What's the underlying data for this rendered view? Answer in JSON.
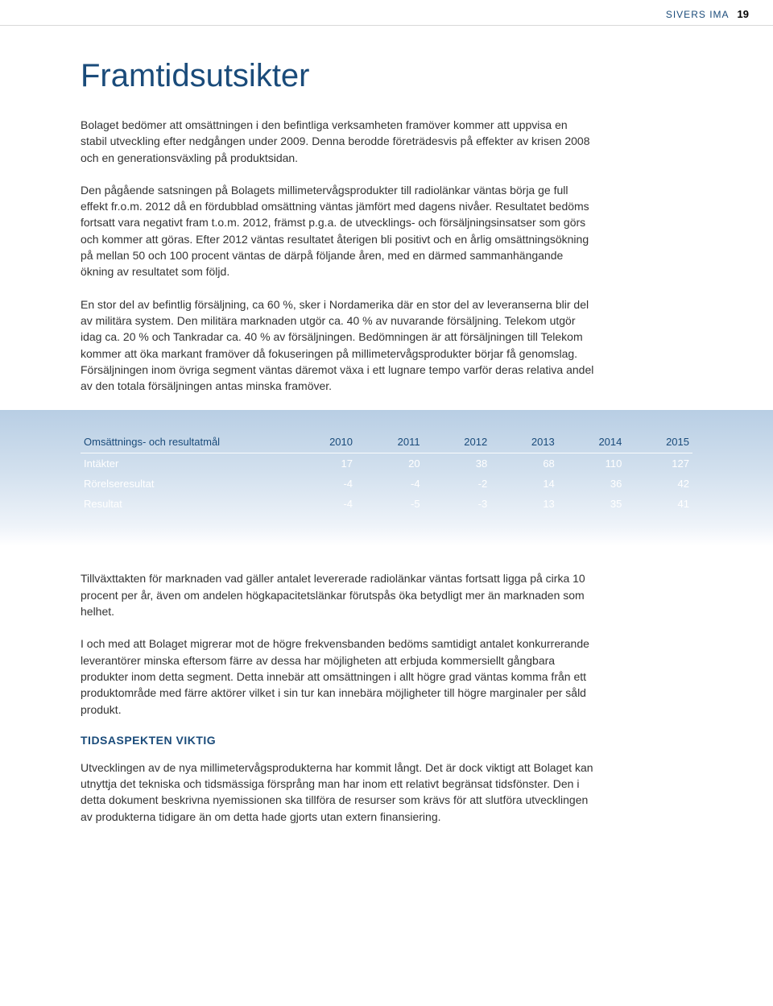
{
  "header": {
    "company": "SIVERS IMA",
    "company_color": "#1a4b7a",
    "page_number": "19",
    "page_number_color": "#000000"
  },
  "title": {
    "text": "Framtidsutsikter",
    "color": "#1a4b7a",
    "fontsize_pt": 40
  },
  "paragraphs": [
    "Bolaget bedömer att omsättningen i den befintliga verksamheten framöver kommer att uppvisa en stabil utveckling efter nedgången under 2009. Denna berodde företrädesvis på effekter av krisen 2008 och en generationsväxling på produktsidan.",
    "Den pågående satsningen på Bolagets millimetervågsprodukter till radiolänkar väntas börja ge full effekt fr.o.m. 2012 då en fördubblad omsättning väntas jämfört med dagens nivåer. Resultatet bedöms fortsatt vara negativt fram t.o.m. 2012, främst p.g.a. de utvecklings- och försäljningsinsatser som görs och kommer att göras. Efter 2012 väntas resultatet återigen bli positivt och en årlig omsättningsökning på mellan 50 och 100 procent väntas de därpå följande åren, med en därmed sammanhängande ökning av resultatet som följd.",
    "En stor del av befintlig försäljning, ca 60 %, sker i Nordamerika där en stor del av leveranserna blir del av militära system. Den militära marknaden utgör ca. 40 % av nuvarande försäljning. Telekom utgör idag ca. 20 % och Tankradar ca. 40 % av försäljningen. Bedömningen är att försäljningen till Telekom kommer att öka markant framöver då fokuseringen på millimetervågsprodukter börjar få genomslag. Försäljningen inom övriga segment väntas däremot växa i ett lugnare tempo varför deras relativa andel av den totala försäljningen antas minska framöver."
  ],
  "table": {
    "type": "table",
    "header_row_color": "#1a4b7a",
    "body_text_color": "#ffffff",
    "band_gradient_top": "#b8cee4",
    "band_gradient_bottom": "#ffffff",
    "columns": [
      "Omsättnings- och resultatmål",
      "2010",
      "2011",
      "2012",
      "2013",
      "2014",
      "2015"
    ],
    "col_widths_pct": [
      34,
      11,
      11,
      11,
      11,
      11,
      11
    ],
    "rows": [
      [
        "Intäkter",
        "17",
        "20",
        "38",
        "68",
        "110",
        "127"
      ],
      [
        "Rörelseresultat",
        "-4",
        "-4",
        "-2",
        "14",
        "36",
        "42"
      ],
      [
        "Resultat",
        "-4",
        "-5",
        "-3",
        "13",
        "35",
        "41"
      ]
    ]
  },
  "after_table_paragraphs": [
    "Tillväxttakten för marknaden vad gäller antalet levererade radiolänkar väntas fortsatt ligga på cirka 10 procent per år, även om andelen högkapacitetslänkar förutspås öka betydligt mer än marknaden som helhet.",
    "I och med att Bolaget migrerar mot de högre frekvensbanden bedöms samtidigt antalet konkurrerande leverantörer minska eftersom färre av dessa har möjligheten att erbjuda kommersiellt gångbara produkter inom detta segment. Detta innebär att omsättningen i allt högre grad väntas komma från ett produktområde med färre aktörer vilket i sin tur kan innebära möjligheter till högre marginaler per såld produkt."
  ],
  "subheading": {
    "text": "TIDSASPEKTEN VIKTIG",
    "color": "#1a4b7a"
  },
  "final_paragraph": "Utvecklingen av de nya millimetervågsprodukterna har kommit långt. Det är dock viktigt att Bolaget kan utnyttja det tekniska och tidsmässiga försprång man har inom ett relativt begränsat tidsfönster. Den i detta dokument beskrivna nyemissionen ska tillföra de resurser som krävs för att slutföra utvecklingen av produkterna tidigare än om detta hade gjorts utan extern finansiering."
}
